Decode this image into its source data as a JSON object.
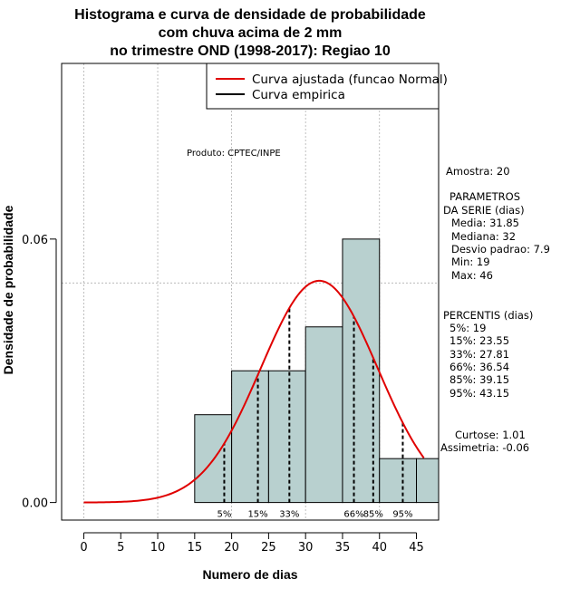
{
  "chart_data": {
    "type": "bar",
    "title_lines": [
      "Histograma e curva de densidade de probabilidade",
      "com chuva acima de 2 mm",
      "no trimestre OND (1998-2017): Regiao 10"
    ],
    "xlabel": "Numero de dias",
    "ylabel": "Densidade de probabilidade",
    "xlim": [
      -3,
      48
    ],
    "ylim": [
      -0.004,
      0.1
    ],
    "x_ticks": [
      0,
      5,
      10,
      15,
      20,
      25,
      30,
      35,
      40,
      45
    ],
    "y_ticks": [
      0.0,
      0.06
    ],
    "y_tick_labels": [
      "0.00",
      "0.06"
    ],
    "grid_x": [
      0,
      10,
      20,
      30,
      40
    ],
    "grid_y": [
      0.05,
      0.1
    ],
    "bins": [
      {
        "x0": 15,
        "x1": 20,
        "density": 0.02
      },
      {
        "x0": 20,
        "x1": 25,
        "density": 0.03
      },
      {
        "x0": 25,
        "x1": 30,
        "density": 0.03
      },
      {
        "x0": 30,
        "x1": 35,
        "density": 0.04
      },
      {
        "x0": 35,
        "x1": 40,
        "density": 0.06
      },
      {
        "x0": 40,
        "x1": 45,
        "density": 0.01
      },
      {
        "x0": 45,
        "x1": 48,
        "density": 0.01
      }
    ],
    "fitted_curve": {
      "name": "Curva ajustada (funcao Normal)",
      "distribution": "normal",
      "mean": 31.85,
      "sd": 7.9,
      "x_range": [
        0,
        46
      ],
      "color": "#e00000"
    },
    "empirical_curve": {
      "name": "Curva empirica",
      "color": "#000000"
    },
    "percentile_lines": [
      {
        "label": "5%",
        "x": 19
      },
      {
        "label": "15%",
        "x": 23.55
      },
      {
        "label": "33%",
        "x": 27.81
      },
      {
        "label": "66%",
        "x": 36.54
      },
      {
        "label": "85%",
        "x": 39.15
      },
      {
        "label": "95%",
        "x": 43.15
      }
    ],
    "legend_position": "top-right",
    "product_label": "Produto: CPTEC/INPE",
    "stats": {
      "sample": "Amostra: 20",
      "params_title_1": "PARAMETROS",
      "params_title_2": "DA SERIE (dias)",
      "media": "Media: 31.85",
      "mediana": "Mediana: 32",
      "desvio": "Desvio padrao: 7.9",
      "min": "Min: 19",
      "max": "Max: 46",
      "percentis_title": "PERCENTIS (dias)",
      "p5": "5%: 19",
      "p15": "15%: 23.55",
      "p33": "33%: 27.81",
      "p66": "66%: 36.54",
      "p85": "85%: 39.15",
      "p95": "95%: 43.15",
      "curtose": "Curtose: 1.01",
      "assimetria": "Assimetria: -0.06"
    },
    "colors": {
      "bar_fill": "#b8d0cf",
      "bar_stroke": "#000000",
      "grid": "#b0b0b0",
      "curve": "#e00000"
    }
  }
}
